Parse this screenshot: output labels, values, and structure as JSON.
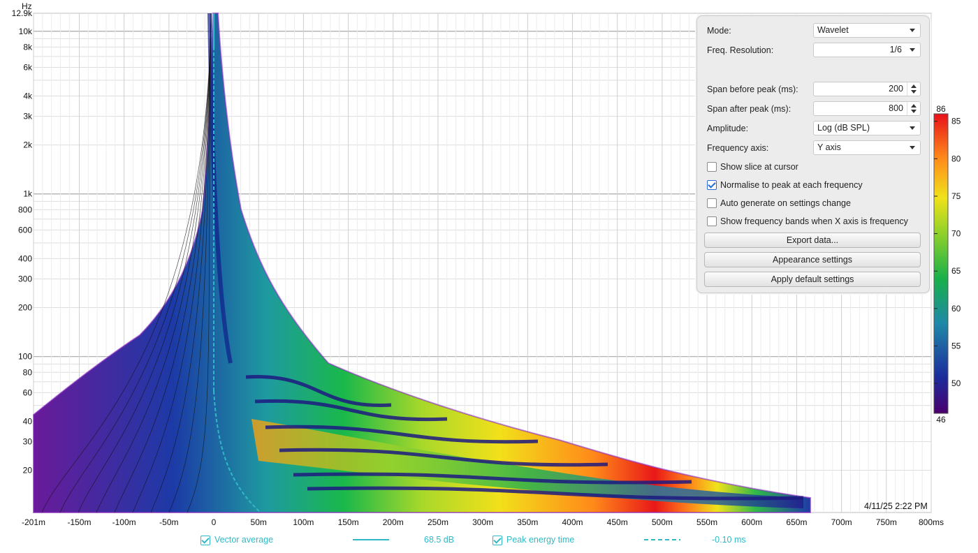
{
  "chart_data": {
    "type": "heatmap",
    "title": "",
    "xlabel": "",
    "ylabel": "Hz",
    "x_ticks": [
      "-201m",
      "-150m",
      "-100m",
      "-50m",
      "0",
      "50m",
      "100m",
      "150m",
      "200m",
      "250m",
      "300m",
      "350m",
      "400m",
      "450m",
      "500m",
      "550m",
      "600m",
      "650m",
      "700m",
      "750m",
      "800ms"
    ],
    "x_tick_values": [
      -201,
      -150,
      -100,
      -50,
      0,
      50,
      100,
      150,
      200,
      250,
      300,
      350,
      400,
      450,
      500,
      550,
      600,
      650,
      700,
      750,
      800
    ],
    "xlim": [
      -201,
      800
    ],
    "y_scale": "log",
    "ylim": [
      11,
      12900
    ],
    "y_ticks": [
      "12.9k",
      "10k",
      "8k",
      "6k",
      "4k",
      "3k",
      "2k",
      "1k",
      "800",
      "600",
      "400",
      "300",
      "200",
      "100",
      "80",
      "60",
      "40",
      "30",
      "20"
    ],
    "y_tick_values": [
      12900,
      10000,
      8000,
      6000,
      4000,
      3000,
      2000,
      1000,
      800,
      600,
      400,
      300,
      200,
      100,
      80,
      60,
      40,
      30,
      20
    ],
    "colorbar": {
      "min": 46,
      "max": 86,
      "ticks": [
        85,
        80,
        75,
        70,
        65,
        60,
        55,
        50
      ],
      "min_label": "46",
      "max_label": "86"
    },
    "series": [
      {
        "name": "Vector average",
        "value_label": "68.5 dB",
        "color": "#2fb9c6"
      },
      {
        "name": "Peak energy time",
        "value_label": "-0.10 ms",
        "color": "#2fb9c6"
      }
    ],
    "timestamp": "4/11/25 2:22 PM"
  },
  "panel": {
    "mode_label": "Mode:",
    "mode_value": "Wavelet",
    "freq_res_label": "Freq. Resolution:",
    "freq_res_value": "1/6",
    "span_before_label": "Span before peak (ms):",
    "span_before_value": "200",
    "span_after_label": "Span after peak (ms):",
    "span_after_value": "800",
    "amplitude_label": "Amplitude:",
    "amplitude_value": "Log (dB SPL)",
    "freq_axis_label": "Frequency axis:",
    "freq_axis_value": "Y axis",
    "show_slice": "Show slice at cursor",
    "normalise": "Normalise to peak at each frequency",
    "auto_generate": "Auto generate on settings change",
    "show_bands": "Show frequency bands when X axis is frequency",
    "export": "Export data...",
    "appearance": "Appearance settings",
    "apply_default": "Apply default settings"
  }
}
